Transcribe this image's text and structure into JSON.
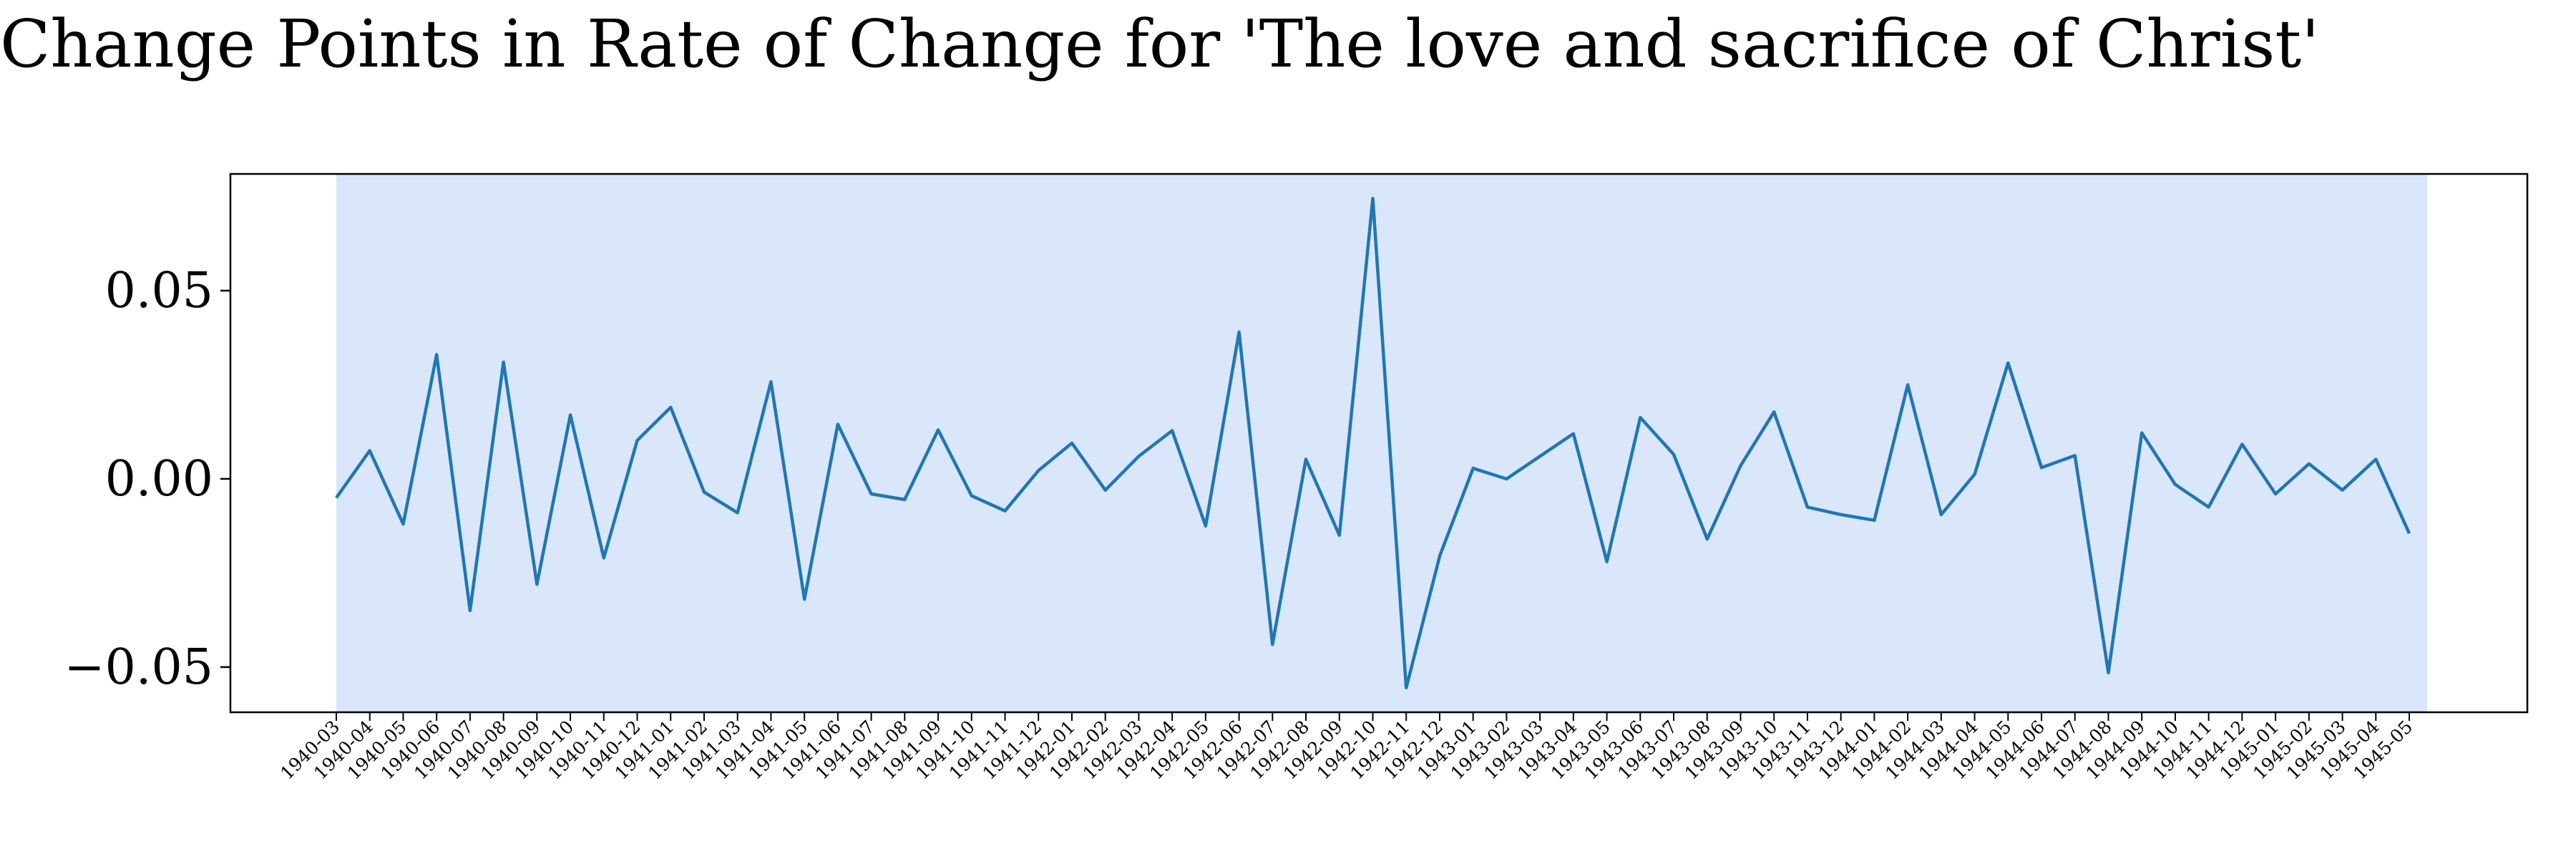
{
  "chart_data": {
    "type": "line",
    "title": "Change Points in Rate of Change for 'The love and sacrifice of Christ'",
    "xlabel": "",
    "ylabel": "",
    "ylim": [
      -0.062,
      0.081
    ],
    "yticks": [
      {
        "value": -0.05,
        "label": "−0.05"
      },
      {
        "value": 0.0,
        "label": "0.00"
      },
      {
        "value": 0.05,
        "label": "0.05"
      }
    ],
    "grid": false,
    "colors": {
      "line": "#1f77b4",
      "shaded_region": "#dae6f9",
      "axes": "#000000"
    },
    "shaded_region": {
      "from": "1940-03",
      "to": "1945-05"
    },
    "x": [
      "1940-03",
      "1940-04",
      "1940-05",
      "1940-06",
      "1940-07",
      "1940-08",
      "1940-09",
      "1940-10",
      "1940-11",
      "1940-12",
      "1941-01",
      "1941-02",
      "1941-03",
      "1941-04",
      "1941-05",
      "1941-06",
      "1941-07",
      "1941-08",
      "1941-09",
      "1941-10",
      "1941-11",
      "1941-12",
      "1942-01",
      "1942-02",
      "1942-03",
      "1942-04",
      "1942-05",
      "1942-06",
      "1942-07",
      "1942-08",
      "1942-09",
      "1942-10",
      "1942-11",
      "1942-12",
      "1943-01",
      "1943-02",
      "1943-03",
      "1943-04",
      "1943-05",
      "1943-06",
      "1943-07",
      "1943-08",
      "1943-09",
      "1943-10",
      "1943-11",
      "1943-12",
      "1944-01",
      "1944-02",
      "1944-03",
      "1944-04",
      "1944-05",
      "1944-06",
      "1944-07",
      "1944-08",
      "1944-09",
      "1944-10",
      "1944-11",
      "1944-12",
      "1945-01",
      "1945-02",
      "1945-03",
      "1945-04",
      "1945-05"
    ],
    "series": [
      {
        "values": [
          -0.005,
          0.0075,
          -0.012,
          0.033,
          -0.035,
          0.031,
          -0.028,
          0.017,
          -0.021,
          0.0102,
          0.019,
          -0.0035,
          -0.009,
          0.0258,
          -0.032,
          0.0145,
          -0.004,
          -0.0055,
          0.013,
          -0.0045,
          -0.0085,
          0.0022,
          0.0095,
          -0.003,
          0.006,
          0.0128,
          -0.0125,
          0.039,
          -0.044,
          0.0052,
          -0.015,
          0.0745,
          -0.0555,
          -0.0205,
          0.0028,
          0.0,
          0.006,
          0.012,
          -0.022,
          0.0163,
          0.0065,
          -0.016,
          0.0035,
          0.0178,
          -0.0075,
          -0.0095,
          -0.011,
          0.025,
          -0.0095,
          0.0012,
          0.0308,
          0.003,
          0.0062,
          -0.0515,
          0.0122,
          -0.0015,
          -0.0075,
          0.0092,
          -0.004,
          0.004,
          -0.003,
          0.0052,
          -0.0145
        ]
      }
    ]
  }
}
